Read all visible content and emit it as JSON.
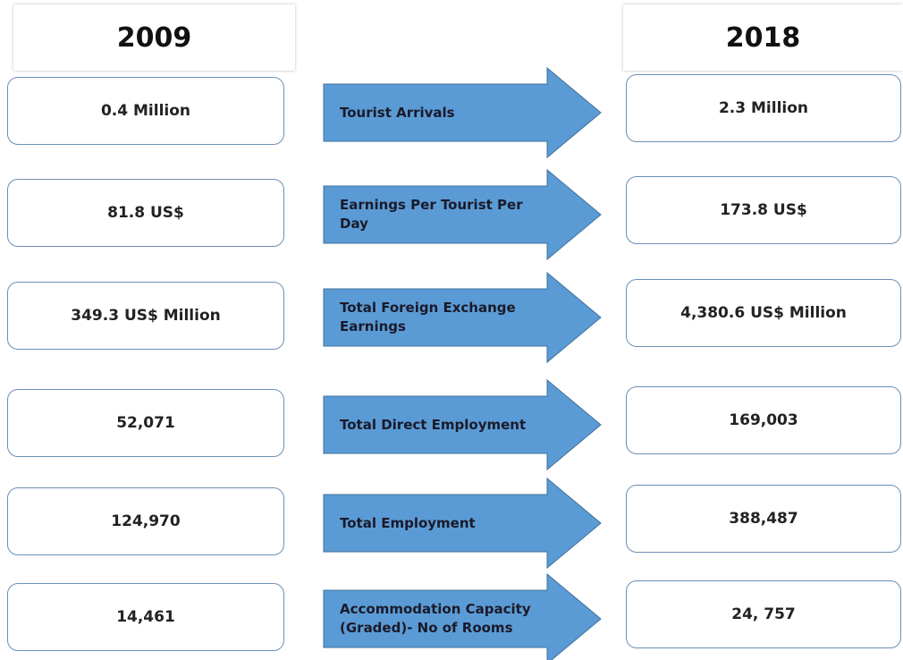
{
  "headers": {
    "left": "2009",
    "right": "2018"
  },
  "rows": [
    {
      "left": "0.4 Million",
      "label": "Tourist Arrivals",
      "right": "2.3 Million"
    },
    {
      "left": "81.8 US$",
      "label": "Earnings Per Tourist Per Day",
      "right": "173.8 US$"
    },
    {
      "left": "349.3 US$ Million",
      "label": "Total Foreign Exchange Earnings",
      "right": "4,380.6 US$ Million"
    },
    {
      "left": "52,071",
      "label": "Total Direct Employment",
      "right": "169,003"
    },
    {
      "left": "124,970",
      "label": "Total Employment",
      "right": "388,487"
    },
    {
      "left": "14,461",
      "label": "Accommodation Capacity (Graded)- No of Rooms",
      "right": "24, 757"
    }
  ]
}
